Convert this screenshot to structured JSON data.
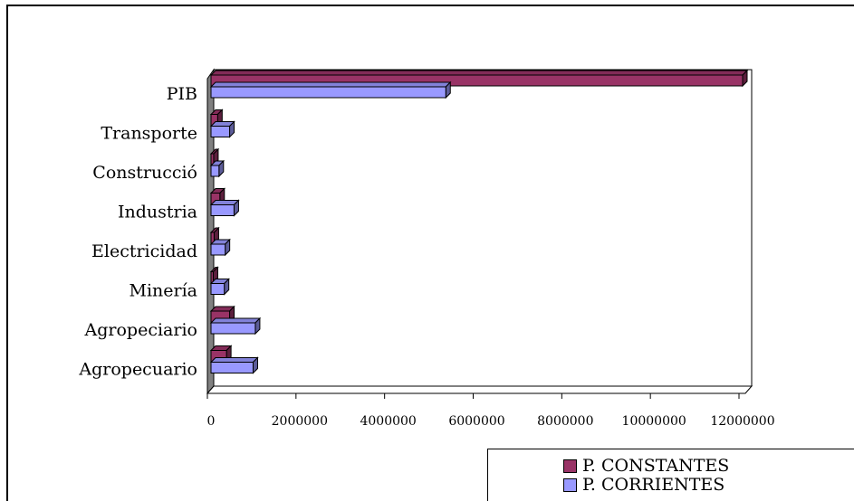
{
  "chart_data": {
    "type": "bar",
    "orientation": "horizontal",
    "three_d": true,
    "categories": [
      "PIB",
      "Transporte",
      "Construcció",
      "Industria",
      "Electricidad",
      "Minería",
      "Agropeciario",
      "Agropecuario"
    ],
    "series": [
      {
        "name": "P. CONSTANTES",
        "color": "#993366",
        "values": [
          12000000,
          150000,
          60000,
          200000,
          70000,
          50000,
          420000,
          350000
        ]
      },
      {
        "name": "P. CORRIENTES",
        "color": "#9999ff",
        "values": [
          5300000,
          420000,
          180000,
          520000,
          320000,
          300000,
          1000000,
          950000
        ]
      }
    ],
    "x_ticks": [
      "0",
      "2000000",
      "4000000",
      "6000000",
      "8000000",
      "10000000",
      "12000000"
    ],
    "xlim": [
      0,
      12000000
    ],
    "grid": false,
    "legend_position": "bottom-right"
  }
}
